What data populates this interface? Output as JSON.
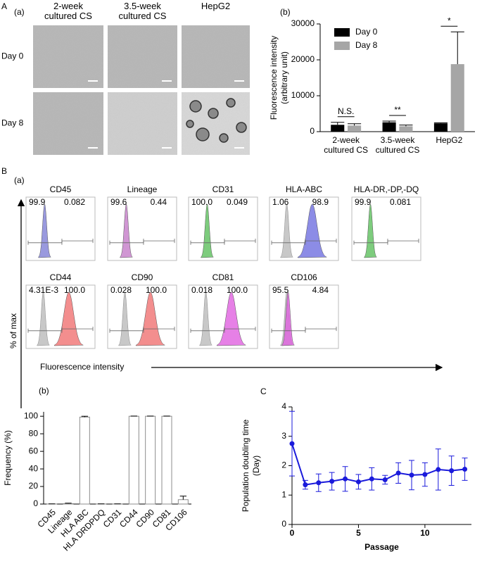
{
  "panel_labels": [
    "A",
    "(a)",
    "(b)",
    "B",
    "(a)",
    "(b)",
    "C"
  ],
  "micrographs": {
    "columns": [
      "2-week cultured CS",
      "3.5-week cultured CS",
      "HepG2"
    ],
    "rows": [
      "Day 0",
      "Day 8"
    ]
  },
  "flow_cytometry": {
    "y_label": "% of max",
    "x_label": "Fluorescence intensity",
    "panels": [
      {
        "title": "CD45",
        "left": "99.9",
        "right": "0.082",
        "color": "#7f7fd6",
        "control": false
      },
      {
        "title": "Lineage",
        "left": "99.6",
        "right": "0.44",
        "color": "#c47cc8",
        "control": false
      },
      {
        "title": "CD31",
        "left": "100.0",
        "right": "0.049",
        "color": "#5cbf5c",
        "control": false
      },
      {
        "title": "HLA-ABC",
        "left": "1.06",
        "right": "98.9",
        "color": "#6f6fe0",
        "control": true
      },
      {
        "title": "HLA-DR,-DP,-DQ",
        "left": "99.9",
        "right": "0.081",
        "color": "#5cbf5c",
        "control": false
      },
      {
        "title": "CD44",
        "left": "4.31E-3",
        "right": "100.0",
        "color": "#f07272",
        "control": true
      },
      {
        "title": "CD90",
        "left": "0.028",
        "right": "100.0",
        "color": "#f07272",
        "control": true
      },
      {
        "title": "CD81",
        "left": "0.018",
        "right": "100.0",
        "color": "#e060e0",
        "control": true
      },
      {
        "title": "CD106",
        "left": "95.5",
        "right": "4.84",
        "color": "#e060e0",
        "control": true
      }
    ]
  },
  "chart_data": [
    {
      "type": "bar",
      "categories": [
        "2-week cultured CS",
        "3.5-week cultured CS",
        "HepG2"
      ],
      "series": [
        {
          "name": "Day 0",
          "color": "#000000",
          "values": [
            1900,
            2600,
            2300
          ],
          "errors": [
            700,
            350,
            150
          ]
        },
        {
          "name": "Day 8",
          "color": "#a6a6a6",
          "values": [
            1700,
            1500,
            18800
          ],
          "errors": [
            500,
            350,
            9000
          ]
        }
      ],
      "ylim": [
        0,
        30000
      ],
      "yticks": [
        0,
        10000,
        20000,
        30000
      ],
      "y_label": [
        "Fluorescence intensity",
        "(arbitrary unit)"
      ],
      "annotations": [
        "N.S.",
        "**",
        "*"
      ],
      "legend": "upper left",
      "xtick_rotation": 0
    },
    {
      "type": "bar",
      "categories": [
        "CD45",
        "Lineage",
        "HLA ABC",
        "HLA DRDPDQ",
        "CD31",
        "CD44",
        "CD90",
        "CD81",
        "CD106"
      ],
      "values": [
        0.1,
        0.5,
        99,
        0.1,
        0.1,
        100,
        100,
        100,
        5
      ],
      "errors": [
        0.1,
        0.5,
        1,
        0.1,
        0.1,
        0.2,
        0.2,
        0.2,
        4
      ],
      "color": "#ffffff",
      "edgecolor": "#8c8c8c",
      "ylim": [
        0,
        105
      ],
      "yticks": [
        0,
        20,
        40,
        60,
        80,
        100
      ],
      "y_label": [
        "Frequency (%)"
      ],
      "xtick_rotation": 45
    },
    {
      "type": "line",
      "x": [
        0,
        1,
        2,
        3,
        4,
        5,
        6,
        7,
        8,
        9,
        10,
        11,
        12,
        13
      ],
      "series": [
        {
          "color": "#1a1adb",
          "values": [
            2.75,
            1.35,
            1.42,
            1.47,
            1.55,
            1.45,
            1.55,
            1.52,
            1.75,
            1.68,
            1.7,
            1.87,
            1.83,
            1.88
          ],
          "errors": [
            1.1,
            0.15,
            0.3,
            0.3,
            0.42,
            0.25,
            0.38,
            0.15,
            0.35,
            0.5,
            0.4,
            0.7,
            0.5,
            0.38
          ]
        }
      ],
      "xlim": [
        0,
        13.5
      ],
      "ylim": [
        0,
        4
      ],
      "xticks": [
        0,
        5,
        10
      ],
      "yticks": [
        0,
        1,
        2,
        3,
        4
      ],
      "x_label": "Passage",
      "y_label": [
        "Population doubling time",
        "(Day)"
      ]
    }
  ]
}
